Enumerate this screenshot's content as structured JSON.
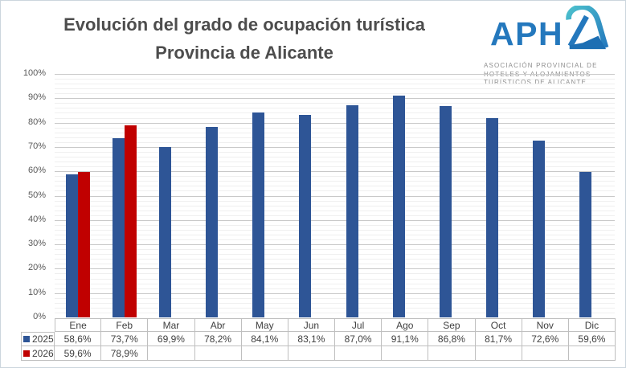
{
  "title": {
    "line1": "Evolución del grado de ocupación turística",
    "line2": "Provincia de Alicante"
  },
  "logo": {
    "wordmark": "APH",
    "stylized_letter": "A",
    "wordmark_color": "#2478bd",
    "accent_teal": "#4cc0cd",
    "accent_blue": "#1d6fb3",
    "subtext_lines": [
      "ASOCIACIÓN PROVINCIAL DE",
      "HOTELES Y ALOJAMIENTOS",
      "TURÍSTICOS DE ALICANTE"
    ]
  },
  "chart_data": {
    "type": "bar",
    "title": "Evolución del grado de ocupación turística Provincia de Alicante",
    "categories": [
      "Ene",
      "Feb",
      "Mar",
      "Abr",
      "May",
      "Jun",
      "Jul",
      "Ago",
      "Sep",
      "Oct",
      "Nov",
      "Dic"
    ],
    "series": [
      {
        "name": "2025",
        "color": "#2e5596",
        "values": [
          58.6,
          73.7,
          69.9,
          78.2,
          84.1,
          83.1,
          87.0,
          91.1,
          86.8,
          81.7,
          72.6,
          59.6
        ]
      },
      {
        "name": "2026",
        "color": "#c00000",
        "values": [
          59.6,
          78.9,
          null,
          null,
          null,
          null,
          null,
          null,
          null,
          null,
          null,
          null
        ]
      }
    ],
    "xlabel": "",
    "ylabel": "",
    "ylim": [
      0,
      100
    ],
    "y_tick_labels": [
      "0%",
      "10%",
      "20%",
      "30%",
      "40%",
      "50%",
      "60%",
      "70%",
      "80%",
      "90%",
      "100%"
    ],
    "grid": "horizontal; major every 10%, minor every 2%",
    "legend_position": "data-table left column"
  },
  "data_table": {
    "rows": [
      {
        "label": "2025",
        "swatch_color": "#2e5596",
        "values": [
          "58,6%",
          "73,7%",
          "69,9%",
          "78,2%",
          "84,1%",
          "83,1%",
          "87,0%",
          "91,1%",
          "86,8%",
          "81,7%",
          "72,6%",
          "59,6%"
        ]
      },
      {
        "label": "2026",
        "swatch_color": "#c00000",
        "values": [
          "59,6%",
          "78,9%",
          "",
          "",
          "",
          "",
          "",
          "",
          "",
          "",
          "",
          ""
        ]
      }
    ]
  }
}
